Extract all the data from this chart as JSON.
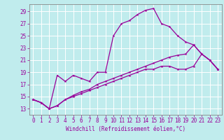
{
  "xlabel": "Windchill (Refroidissement éolien,°C)",
  "background_color": "#c0eced",
  "grid_color": "#ffffff",
  "line_color": "#990099",
  "spine_color": "#888888",
  "x_ticks": [
    0,
    1,
    2,
    3,
    4,
    5,
    6,
    7,
    8,
    9,
    10,
    11,
    12,
    13,
    14,
    15,
    16,
    17,
    18,
    19,
    20,
    21,
    22,
    23
  ],
  "y_ticks": [
    13,
    15,
    17,
    19,
    21,
    23,
    25,
    27,
    29
  ],
  "ylim": [
    12.0,
    30.2
  ],
  "xlim": [
    -0.5,
    23.5
  ],
  "series1": [
    14.5,
    14.0,
    13.0,
    18.5,
    17.5,
    18.5,
    18.0,
    17.5,
    19.0,
    19.0,
    25.0,
    27.0,
    27.5,
    28.5,
    29.2,
    29.5,
    27.0,
    26.5,
    25.0,
    24.0,
    23.5,
    22.0,
    21.0,
    19.5
  ],
  "series2": [
    14.5,
    14.0,
    13.0,
    13.5,
    14.5,
    15.0,
    15.5,
    16.0,
    16.5,
    17.0,
    17.5,
    18.0,
    18.5,
    19.0,
    19.5,
    19.5,
    20.0,
    20.0,
    19.5,
    19.5,
    20.0,
    22.0,
    21.0,
    19.5
  ],
  "series3": [
    14.5,
    14.0,
    13.0,
    13.5,
    14.5,
    15.2,
    15.8,
    16.2,
    17.0,
    17.5,
    18.0,
    18.5,
    19.0,
    19.5,
    20.0,
    20.5,
    21.0,
    21.5,
    21.8,
    22.0,
    23.5,
    22.0,
    21.0,
    19.5
  ],
  "tick_fontsize": 5.5,
  "xlabel_fontsize": 5.5
}
